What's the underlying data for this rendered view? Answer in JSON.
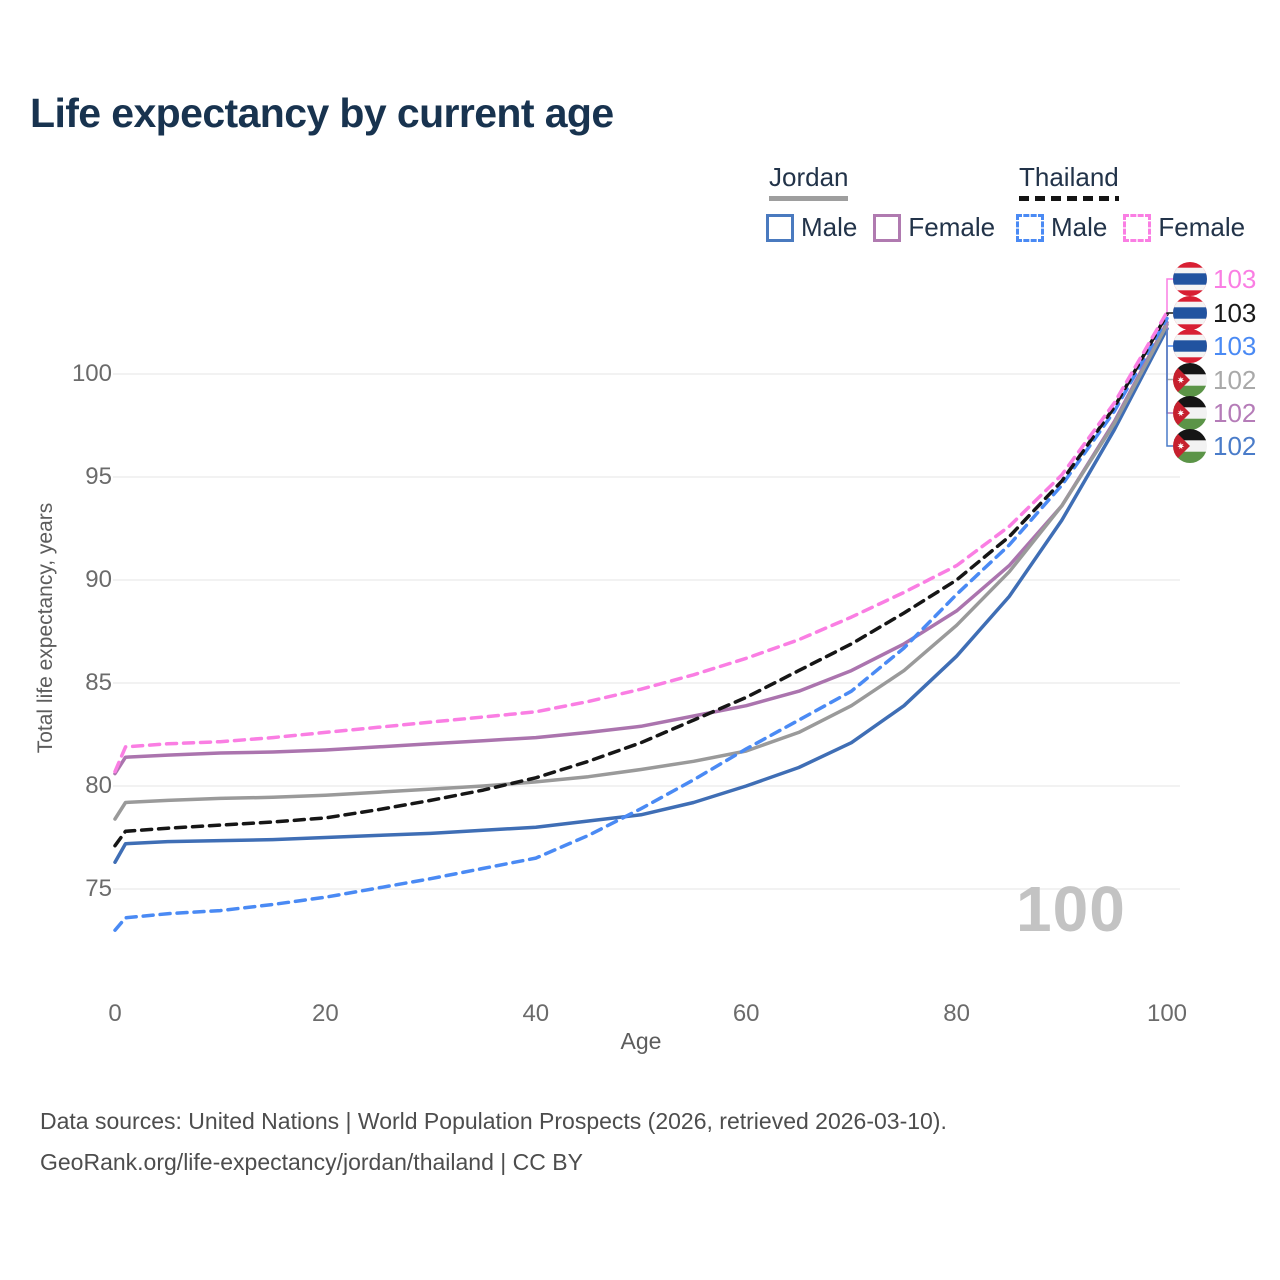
{
  "title": "Life expectancy by current age",
  "watermark": "100",
  "legend": {
    "groups": [
      {
        "country": "Jordan",
        "style": "solid",
        "underline_color": "#9e9e9e",
        "items": [
          {
            "label": "Male",
            "color": "#4a7abf"
          },
          {
            "label": "Female",
            "color": "#b07ab0"
          }
        ]
      },
      {
        "country": "Thailand",
        "style": "dashed",
        "underline_color": "#141414",
        "items": [
          {
            "label": "Male",
            "color": "#4a8af4"
          },
          {
            "label": "Female",
            "color": "#fa7ee3"
          }
        ]
      }
    ]
  },
  "footer": {
    "line1": "Data sources: United Nations | World Population Prospects (2026, retrieved 2026-03-10).",
    "line2": "GeoRank.org/life-expectancy/jordan/thailand | CC BY"
  },
  "chart_data": {
    "type": "line",
    "title": "Life expectancy by current age",
    "xlabel": "Age",
    "ylabel": "Total life expectancy, years",
    "xlim": [
      0,
      100
    ],
    "ylim": [
      72.5,
      104
    ],
    "xticks": [
      0,
      20,
      40,
      60,
      80,
      100
    ],
    "yticks": [
      75,
      80,
      85,
      90,
      95,
      100
    ],
    "grid": "horizontal",
    "legend_position": "top-right",
    "x": [
      0,
      1,
      5,
      10,
      15,
      20,
      25,
      30,
      35,
      40,
      45,
      50,
      55,
      60,
      65,
      70,
      75,
      80,
      85,
      90,
      95,
      100
    ],
    "series": [
      {
        "name": "Thailand Female",
        "country": "Thailand",
        "flag": "TH",
        "color": "#fa7ee3",
        "dashed": true,
        "end_label": "103",
        "label_color": "#fa7ee3",
        "values": [
          80.7,
          81.9,
          82.05,
          82.15,
          82.35,
          82.6,
          82.85,
          83.1,
          83.35,
          83.6,
          84.1,
          84.7,
          85.4,
          86.2,
          87.1,
          88.2,
          89.4,
          90.7,
          92.6,
          95.1,
          98.6,
          103.0
        ]
      },
      {
        "name": "Thailand Both Sexes",
        "country": "Thailand",
        "flag": "TH",
        "color": "#161616",
        "dashed": true,
        "end_label": "103",
        "label_color": "#1a1a1a",
        "values": [
          77.1,
          77.8,
          77.95,
          78.1,
          78.25,
          78.45,
          78.85,
          79.3,
          79.8,
          80.4,
          81.2,
          82.1,
          83.2,
          84.3,
          85.6,
          86.9,
          88.4,
          90.0,
          92.1,
          94.8,
          98.4,
          102.9
        ]
      },
      {
        "name": "Thailand Male",
        "country": "Thailand",
        "flag": "TH",
        "color": "#4a8af4",
        "dashed": true,
        "end_label": "103",
        "label_color": "#4a8af4",
        "values": [
          73.0,
          73.6,
          73.8,
          73.95,
          74.25,
          74.6,
          75.05,
          75.5,
          76.0,
          76.5,
          77.6,
          78.9,
          80.3,
          81.8,
          83.2,
          84.6,
          86.7,
          89.3,
          91.7,
          94.6,
          98.2,
          102.7
        ]
      },
      {
        "name": "Jordan Both Sexes",
        "country": "Jordan",
        "flag": "JO",
        "color": "#9a9a9a",
        "dashed": false,
        "end_label": "102",
        "label_color": "#a9a9a9",
        "values": [
          78.4,
          79.2,
          79.3,
          79.4,
          79.45,
          79.55,
          79.7,
          79.85,
          80.0,
          80.2,
          80.45,
          80.8,
          81.2,
          81.7,
          82.6,
          83.9,
          85.6,
          87.8,
          90.4,
          93.6,
          97.6,
          102.4
        ]
      },
      {
        "name": "Jordan Female",
        "country": "Jordan",
        "flag": "JO",
        "color": "#ab74ae",
        "dashed": false,
        "end_label": "102",
        "label_color": "#b57cb8",
        "values": [
          80.6,
          81.4,
          81.5,
          81.6,
          81.65,
          81.75,
          81.9,
          82.05,
          82.2,
          82.35,
          82.6,
          82.9,
          83.4,
          83.9,
          84.6,
          85.6,
          86.9,
          88.5,
          90.7,
          93.6,
          97.7,
          102.5
        ]
      },
      {
        "name": "Jordan Male",
        "country": "Jordan",
        "flag": "JO",
        "color": "#3f6eb5",
        "dashed": false,
        "end_label": "102",
        "label_color": "#4a7cc9",
        "values": [
          76.3,
          77.2,
          77.3,
          77.35,
          77.4,
          77.5,
          77.6,
          77.7,
          77.85,
          78.0,
          78.3,
          78.6,
          79.2,
          80.0,
          80.9,
          82.1,
          83.9,
          86.3,
          89.2,
          92.9,
          97.3,
          102.2
        ]
      }
    ]
  }
}
